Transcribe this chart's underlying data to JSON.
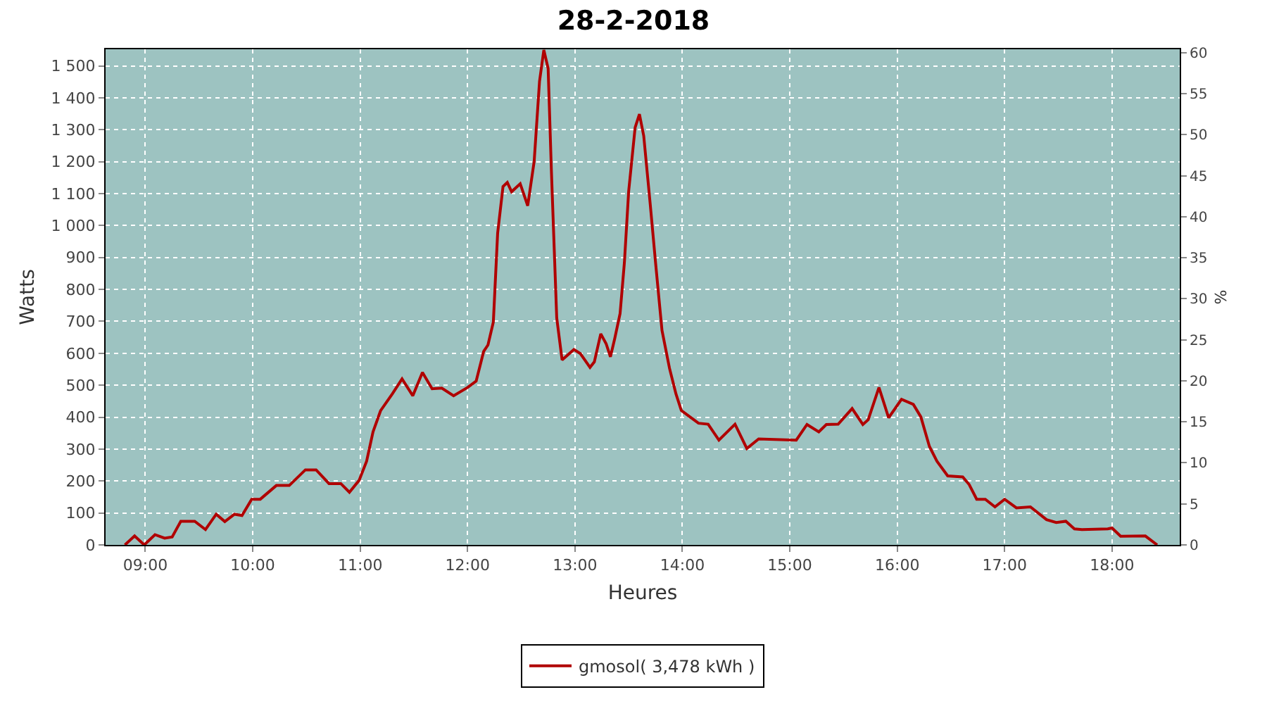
{
  "chart_data": {
    "type": "line",
    "title": "28-2-2018",
    "xlabel": "Heures",
    "ylabel": "Watts",
    "y2label": "%",
    "xlim": [
      8.63,
      18.63
    ],
    "xticks": [
      {
        "value": 9,
        "label": "09:00"
      },
      {
        "value": 10,
        "label": "10:00"
      },
      {
        "value": 11,
        "label": "11:00"
      },
      {
        "value": 12,
        "label": "12:00"
      },
      {
        "value": 13,
        "label": "13:00"
      },
      {
        "value": 14,
        "label": "14:00"
      },
      {
        "value": 15,
        "label": "15:00"
      },
      {
        "value": 16,
        "label": "16:00"
      },
      {
        "value": 17,
        "label": "17:00"
      },
      {
        "value": 18,
        "label": "18:00"
      }
    ],
    "ylim": [
      0,
      1552
    ],
    "yticks": [
      0,
      100,
      200,
      300,
      400,
      500,
      600,
      700,
      800,
      900,
      {
        "value": 1000,
        "label": "1 000"
      },
      {
        "value": 1100,
        "label": "1 100"
      },
      {
        "value": 1200,
        "label": "1 200"
      },
      {
        "value": 1300,
        "label": "1 300"
      },
      {
        "value": 1400,
        "label": "1 400"
      },
      {
        "value": 1500,
        "label": "1 500"
      }
    ],
    "y2lim": [
      0,
      60.4
    ],
    "y2ticks": [
      0,
      5,
      10,
      15,
      20,
      25,
      30,
      35,
      40,
      45,
      50,
      55,
      60
    ],
    "grid": true,
    "legend": "bottom",
    "series": [
      {
        "name": "gmosol( 3,478 kWh )",
        "color": "#b00000",
        "x": [
          8.81,
          8.9,
          8.99,
          9.09,
          9.18,
          9.25,
          9.33,
          9.46,
          9.56,
          9.66,
          9.74,
          9.83,
          9.9,
          9.99,
          10.07,
          10.22,
          10.34,
          10.49,
          10.59,
          10.71,
          10.82,
          10.9,
          10.99,
          11.06,
          11.12,
          11.19,
          11.3,
          11.39,
          11.49,
          11.58,
          11.67,
          11.76,
          11.87,
          12,
          12.08,
          12.15,
          12.19,
          12.24,
          12.28,
          12.33,
          12.37,
          12.41,
          12.49,
          12.56,
          12.62,
          12.67,
          12.71,
          12.75,
          12.78,
          12.83,
          12.88,
          12.99,
          13.05,
          13.14,
          13.18,
          13.24,
          13.29,
          13.33,
          13.37,
          13.42,
          13.46,
          13.5,
          13.56,
          13.6,
          13.64,
          13.7,
          13.75,
          13.81,
          13.88,
          13.94,
          13.99,
          14.07,
          14.15,
          14.24,
          14.34,
          14.49,
          14.6,
          14.71,
          15.06,
          15.16,
          15.27,
          15.34,
          15.45,
          15.58,
          15.68,
          15.73,
          15.83,
          15.92,
          16.04,
          16.15,
          16.22,
          16.3,
          16.37,
          16.47,
          16.61,
          16.67,
          16.74,
          16.82,
          16.91,
          17,
          17.11,
          17.24,
          17.39,
          17.48,
          17.57,
          17.65,
          17.72,
          17.96,
          18,
          18.08,
          18.31,
          18.42
        ],
        "values": [
          0,
          28,
          0,
          32,
          21,
          25,
          74,
          74,
          48,
          96,
          73,
          96,
          92,
          143,
          143,
          186,
          186,
          235,
          235,
          192,
          192,
          165,
          202,
          262,
          354,
          420,
          473,
          520,
          467,
          540,
          489,
          491,
          467,
          493,
          513,
          606,
          626,
          698,
          976,
          1122,
          1135,
          1106,
          1131,
          1062,
          1201,
          1452,
          1550,
          1492,
          1175,
          711,
          579,
          612,
          599,
          556,
          573,
          661,
          630,
          589,
          646,
          725,
          884,
          1108,
          1307,
          1349,
          1281,
          1069,
          884,
          672,
          553,
          473,
          421,
          401,
          381,
          378,
          328,
          378,
          302,
          332,
          328,
          377,
          354,
          377,
          378,
          427,
          377,
          392,
          493,
          398,
          456,
          440,
          401,
          308,
          262,
          216,
          213,
          189,
          143,
          143,
          119,
          143,
          116,
          119,
          79,
          70,
          74,
          50,
          48,
          50,
          53,
          27,
          28,
          0
        ]
      }
    ]
  }
}
